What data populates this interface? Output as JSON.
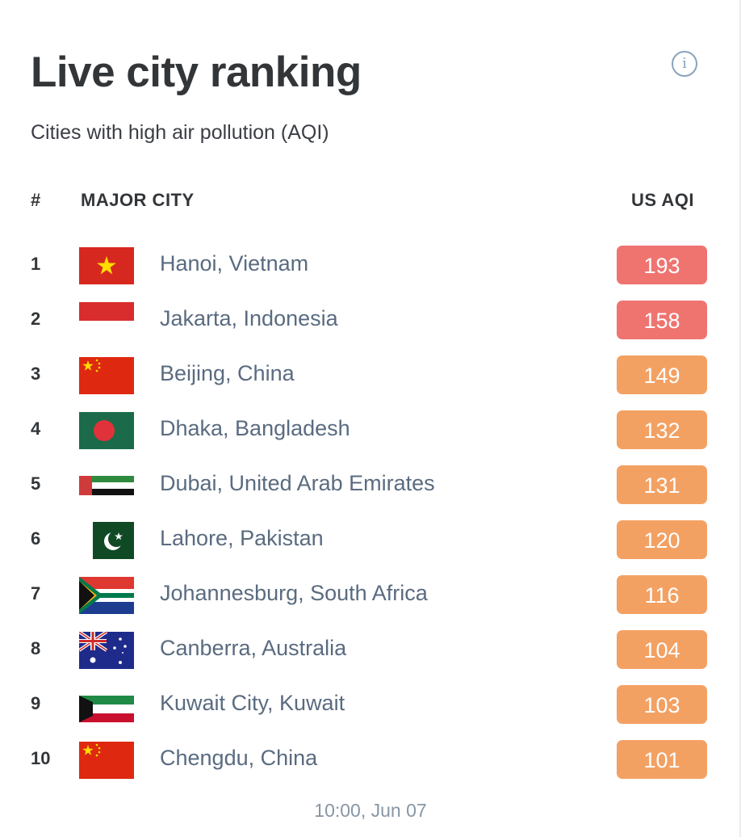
{
  "header": {
    "title": "Live city ranking",
    "subtitle": "Cities with high air pollution (AQI)",
    "info_icon": "info-icon"
  },
  "table": {
    "col_rank": "#",
    "col_city": "MAJOR CITY",
    "col_aqi": "US AQI",
    "rows": [
      {
        "rank": "1",
        "city": "Hanoi, Vietnam",
        "aqi": "193",
        "flag": "vietnam-flag",
        "level_color": "#ef7470"
      },
      {
        "rank": "2",
        "city": "Jakarta, Indonesia",
        "aqi": "158",
        "flag": "indonesia-flag",
        "level_color": "#ef7470"
      },
      {
        "rank": "3",
        "city": "Beijing, China",
        "aqi": "149",
        "flag": "china-flag",
        "level_color": "#f3a163"
      },
      {
        "rank": "4",
        "city": "Dhaka, Bangladesh",
        "aqi": "132",
        "flag": "bangladesh-flag",
        "level_color": "#f3a163"
      },
      {
        "rank": "5",
        "city": "Dubai, United Arab Emirates",
        "aqi": "131",
        "flag": "uae-flag",
        "level_color": "#f3a163"
      },
      {
        "rank": "6",
        "city": "Lahore, Pakistan",
        "aqi": "120",
        "flag": "pakistan-flag",
        "level_color": "#f3a163"
      },
      {
        "rank": "7",
        "city": "Johannesburg, South Africa",
        "aqi": "116",
        "flag": "south-africa-flag",
        "level_color": "#f3a163"
      },
      {
        "rank": "8",
        "city": "Canberra, Australia",
        "aqi": "104",
        "flag": "australia-flag",
        "level_color": "#f3a163"
      },
      {
        "rank": "9",
        "city": "Kuwait City, Kuwait",
        "aqi": "103",
        "flag": "kuwait-flag",
        "level_color": "#f3a163"
      },
      {
        "rank": "10",
        "city": "Chengdu, China",
        "aqi": "101",
        "flag": "china-flag",
        "level_color": "#f3a163"
      }
    ]
  },
  "footer": {
    "timestamp": "10:00, Jun 07"
  }
}
